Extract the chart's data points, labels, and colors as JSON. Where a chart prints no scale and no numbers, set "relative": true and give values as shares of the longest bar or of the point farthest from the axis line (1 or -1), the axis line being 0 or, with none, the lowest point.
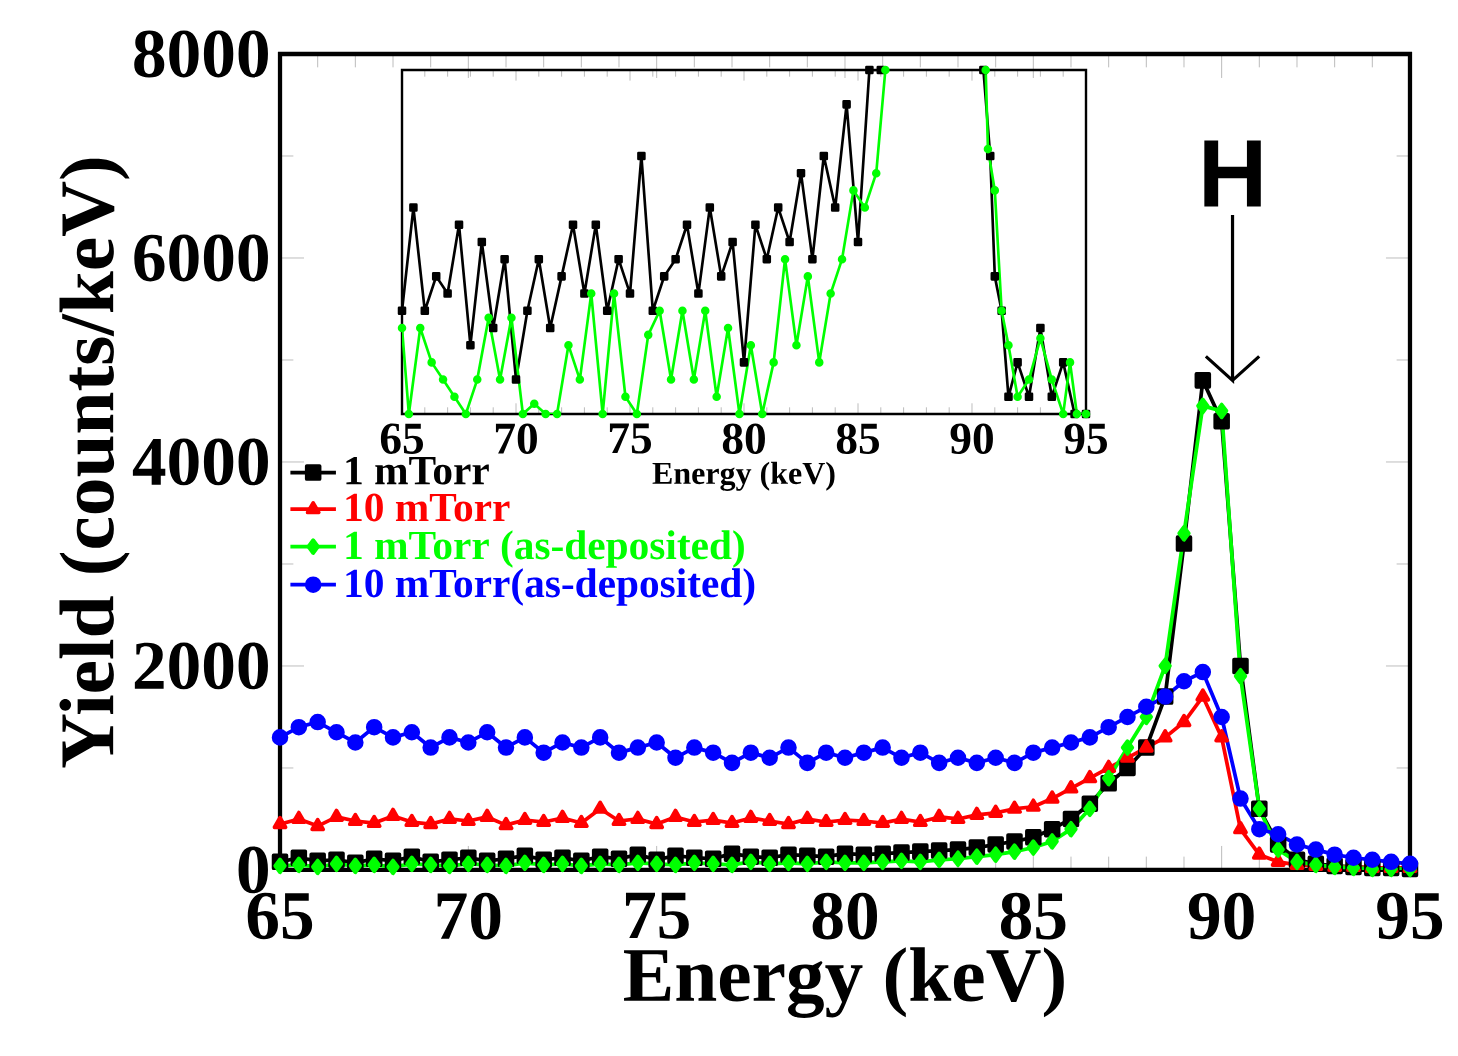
{
  "chart_data": [
    {
      "type": "line",
      "xlabel": "Energy (keV)",
      "ylabel": "Yield (counts/keV)",
      "xlim": [
        65,
        95
      ],
      "ylim": [
        0,
        8000
      ],
      "xticks": [
        65,
        70,
        75,
        80,
        85,
        90,
        95
      ],
      "yticks": [
        0,
        2000,
        4000,
        6000,
        8000
      ],
      "legend": "left",
      "line_style": "solid",
      "annotations": [
        "H"
      ],
      "x": [
        65,
        65.5,
        66,
        66.5,
        67,
        67.5,
        68,
        68.5,
        69,
        69.5,
        70,
        70.5,
        71,
        71.5,
        72,
        72.5,
        73,
        73.5,
        74,
        74.5,
        75,
        75.5,
        76,
        76.5,
        77,
        77.5,
        78,
        78.5,
        79,
        79.5,
        80,
        80.5,
        81,
        81.5,
        82,
        82.5,
        83,
        83.5,
        84,
        84.5,
        85,
        85.5,
        86,
        86.5,
        87,
        87.5,
        88,
        88.5,
        89,
        89.5,
        90,
        90.5,
        91,
        91.5,
        92,
        92.5,
        93,
        93.5,
        94,
        94.5,
        95
      ],
      "series": [
        {
          "name": "1 mTorr",
          "color": "#000000",
          "marker": "square",
          "values": [
            80,
            120,
            90,
            100,
            70,
            110,
            90,
            130,
            80,
            100,
            120,
            90,
            110,
            140,
            100,
            120,
            90,
            130,
            110,
            150,
            100,
            140,
            120,
            110,
            160,
            130,
            120,
            150,
            140,
            130,
            160,
            150,
            160,
            170,
            180,
            190,
            200,
            220,
            250,
            280,
            320,
            400,
            500,
            650,
            850,
            1000,
            1200,
            1700,
            3200,
            4800,
            4400,
            2000,
            600,
            250,
            100,
            60,
            40,
            30,
            20,
            20,
            10
          ]
        },
        {
          "name": "10 mTorr",
          "color": "#ff0000",
          "marker": "triangle",
          "values": [
            450,
            500,
            430,
            520,
            480,
            460,
            530,
            470,
            450,
            500,
            480,
            520,
            440,
            490,
            470,
            510,
            460,
            600,
            480,
            500,
            450,
            520,
            470,
            490,
            460,
            510,
            480,
            450,
            500,
            470,
            490,
            480,
            460,
            500,
            470,
            520,
            500,
            540,
            560,
            600,
            620,
            700,
            800,
            900,
            1000,
            1100,
            1200,
            1300,
            1450,
            1700,
            1300,
            400,
            150,
            80,
            50,
            40,
            30,
            30,
            20,
            20,
            20
          ]
        },
        {
          "name": "1 mTorr (as-deposited)",
          "color": "#00ff00",
          "marker": "diamond",
          "values": [
            40,
            50,
            30,
            60,
            40,
            50,
            30,
            60,
            50,
            40,
            60,
            50,
            40,
            70,
            50,
            60,
            40,
            60,
            50,
            70,
            60,
            50,
            70,
            60,
            50,
            80,
            60,
            70,
            60,
            80,
            70,
            70,
            80,
            90,
            80,
            100,
            110,
            130,
            150,
            180,
            220,
            280,
            400,
            600,
            900,
            1200,
            1500,
            2000,
            3300,
            4550,
            4500,
            1900,
            600,
            200,
            80,
            50,
            30,
            20,
            10,
            10,
            10
          ]
        },
        {
          "name": "10 mTorr(as-deposited)",
          "color": "#0000ff",
          "marker": "circle",
          "values": [
            1300,
            1400,
            1450,
            1350,
            1250,
            1400,
            1300,
            1350,
            1200,
            1300,
            1250,
            1350,
            1200,
            1300,
            1150,
            1250,
            1200,
            1300,
            1150,
            1200,
            1250,
            1100,
            1200,
            1150,
            1050,
            1150,
            1100,
            1200,
            1050,
            1150,
            1100,
            1150,
            1200,
            1100,
            1150,
            1050,
            1100,
            1050,
            1100,
            1050,
            1150,
            1200,
            1250,
            1300,
            1400,
            1500,
            1600,
            1700,
            1850,
            1940,
            1500,
            700,
            400,
            350,
            250,
            200,
            150,
            120,
            100,
            80,
            60
          ]
        }
      ]
    },
    {
      "type": "line",
      "relative": true,
      "tick_labels": "x",
      "xlabel": "Energy (keV)",
      "xlim": [
        65,
        95
      ],
      "xticks": [
        65,
        70,
        75,
        80,
        85,
        90,
        95
      ],
      "line_style": "solid",
      "series": [
        {
          "color": "#000000",
          "marker": "square",
          "x": [
            65,
            65.5,
            66,
            66.5,
            67,
            67.5,
            68,
            68.5,
            69,
            69.5,
            70,
            70.5,
            71,
            71.5,
            72,
            72.5,
            73,
            73.5,
            74,
            74.5,
            75,
            75.5,
            76,
            76.5,
            77,
            77.5,
            78,
            78.5,
            79,
            79.5,
            80,
            80.5,
            81,
            81.5,
            82,
            82.5,
            83,
            83.5,
            84,
            84.5,
            85,
            85.5,
            86,
            88,
            90.5,
            90.8,
            91,
            91.3,
            91.6,
            92,
            92.5,
            93,
            93.5,
            94,
            94.5,
            95
          ],
          "values": [
            0.3,
            0.6,
            0.3,
            0.4,
            0.35,
            0.55,
            0.2,
            0.5,
            0.25,
            0.45,
            0.1,
            0.3,
            0.45,
            0.25,
            0.4,
            0.55,
            0.35,
            0.55,
            0.3,
            0.45,
            0.35,
            0.75,
            0.3,
            0.4,
            0.45,
            0.55,
            0.35,
            0.6,
            0.4,
            0.5,
            0.15,
            0.55,
            0.45,
            0.6,
            0.5,
            0.7,
            0.45,
            0.75,
            0.6,
            0.9,
            0.5,
            1.0,
            1.0,
            null,
            1.0,
            0.75,
            0.4,
            0.3,
            0.05,
            0.15,
            0.05,
            0.25,
            0.05,
            0.15,
            0.0,
            0.0
          ]
        },
        {
          "color": "#00ff00",
          "marker": "circle",
          "x": [
            65,
            65.3,
            65.8,
            66.3,
            66.8,
            67.3,
            67.8,
            68.3,
            68.8,
            69.3,
            69.8,
            70.3,
            70.8,
            71.3,
            71.8,
            72.3,
            72.8,
            73.3,
            73.8,
            74.3,
            74.8,
            75.3,
            75.8,
            76.3,
            76.8,
            77.3,
            77.8,
            78.3,
            78.8,
            79.3,
            79.8,
            80.3,
            80.8,
            81.3,
            81.8,
            82.3,
            82.8,
            83.3,
            83.8,
            84.3,
            84.8,
            85.3,
            85.8,
            86.2,
            88,
            90.6,
            90.7,
            91,
            91.3,
            91.6,
            92,
            92.5,
            93,
            93.5,
            94,
            94.3,
            94.6,
            95
          ],
          "values": [
            0.25,
            0.0,
            0.25,
            0.15,
            0.1,
            0.05,
            0.0,
            0.1,
            0.28,
            0.1,
            0.28,
            0.0,
            0.03,
            0.0,
            0.0,
            0.2,
            0.1,
            0.35,
            0.0,
            0.35,
            0.05,
            0.0,
            0.23,
            0.3,
            0.1,
            0.3,
            0.1,
            0.3,
            0.05,
            0.25,
            0.0,
            0.2,
            0.0,
            0.15,
            0.45,
            0.2,
            0.4,
            0.15,
            0.35,
            0.45,
            0.65,
            0.6,
            0.7,
            1.0,
            null,
            1.0,
            0.77,
            0.65,
            0.3,
            0.2,
            0.05,
            0.1,
            0.22,
            0.1,
            0.0,
            0.15,
            0.0,
            0.0
          ]
        }
      ]
    }
  ]
}
